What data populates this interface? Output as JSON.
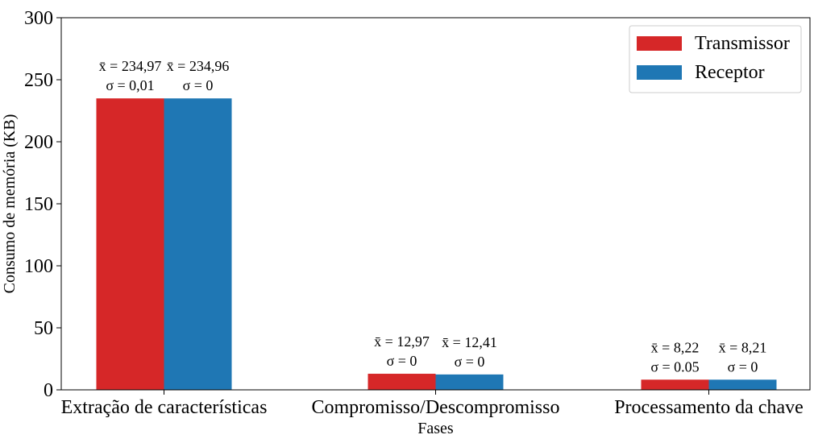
{
  "chart_data": {
    "type": "bar",
    "xlabel": "Fases",
    "ylabel": "Consumo de memória (KB)",
    "ylim": [
      0,
      300
    ],
    "yticks": [
      "0",
      "50",
      "100",
      "150",
      "200",
      "250",
      "300"
    ],
    "categories": [
      "Extração de características",
      "Compromisso/Descompromisso",
      "Processamento da chave"
    ],
    "legend_position": "top-right",
    "grid": false,
    "series": [
      {
        "name": "Transmissor",
        "color": "#d62728",
        "values": [
          234.97,
          12.97,
          8.22
        ],
        "mean_labels": [
          "x̄ = 234,97",
          "x̄ = 12,97",
          "x̄ = 8,22"
        ],
        "std_labels": [
          "σ =  0,01",
          "σ =  0",
          "σ =  0.05"
        ]
      },
      {
        "name": "Receptor",
        "color": "#1f77b4",
        "values": [
          234.96,
          12.41,
          8.21
        ],
        "mean_labels": [
          "x̄ = 234,96",
          "x̄ = 12,41",
          "x̄ = 8,21"
        ],
        "std_labels": [
          "σ =  0",
          "σ =  0",
          "σ =  0"
        ]
      }
    ]
  }
}
